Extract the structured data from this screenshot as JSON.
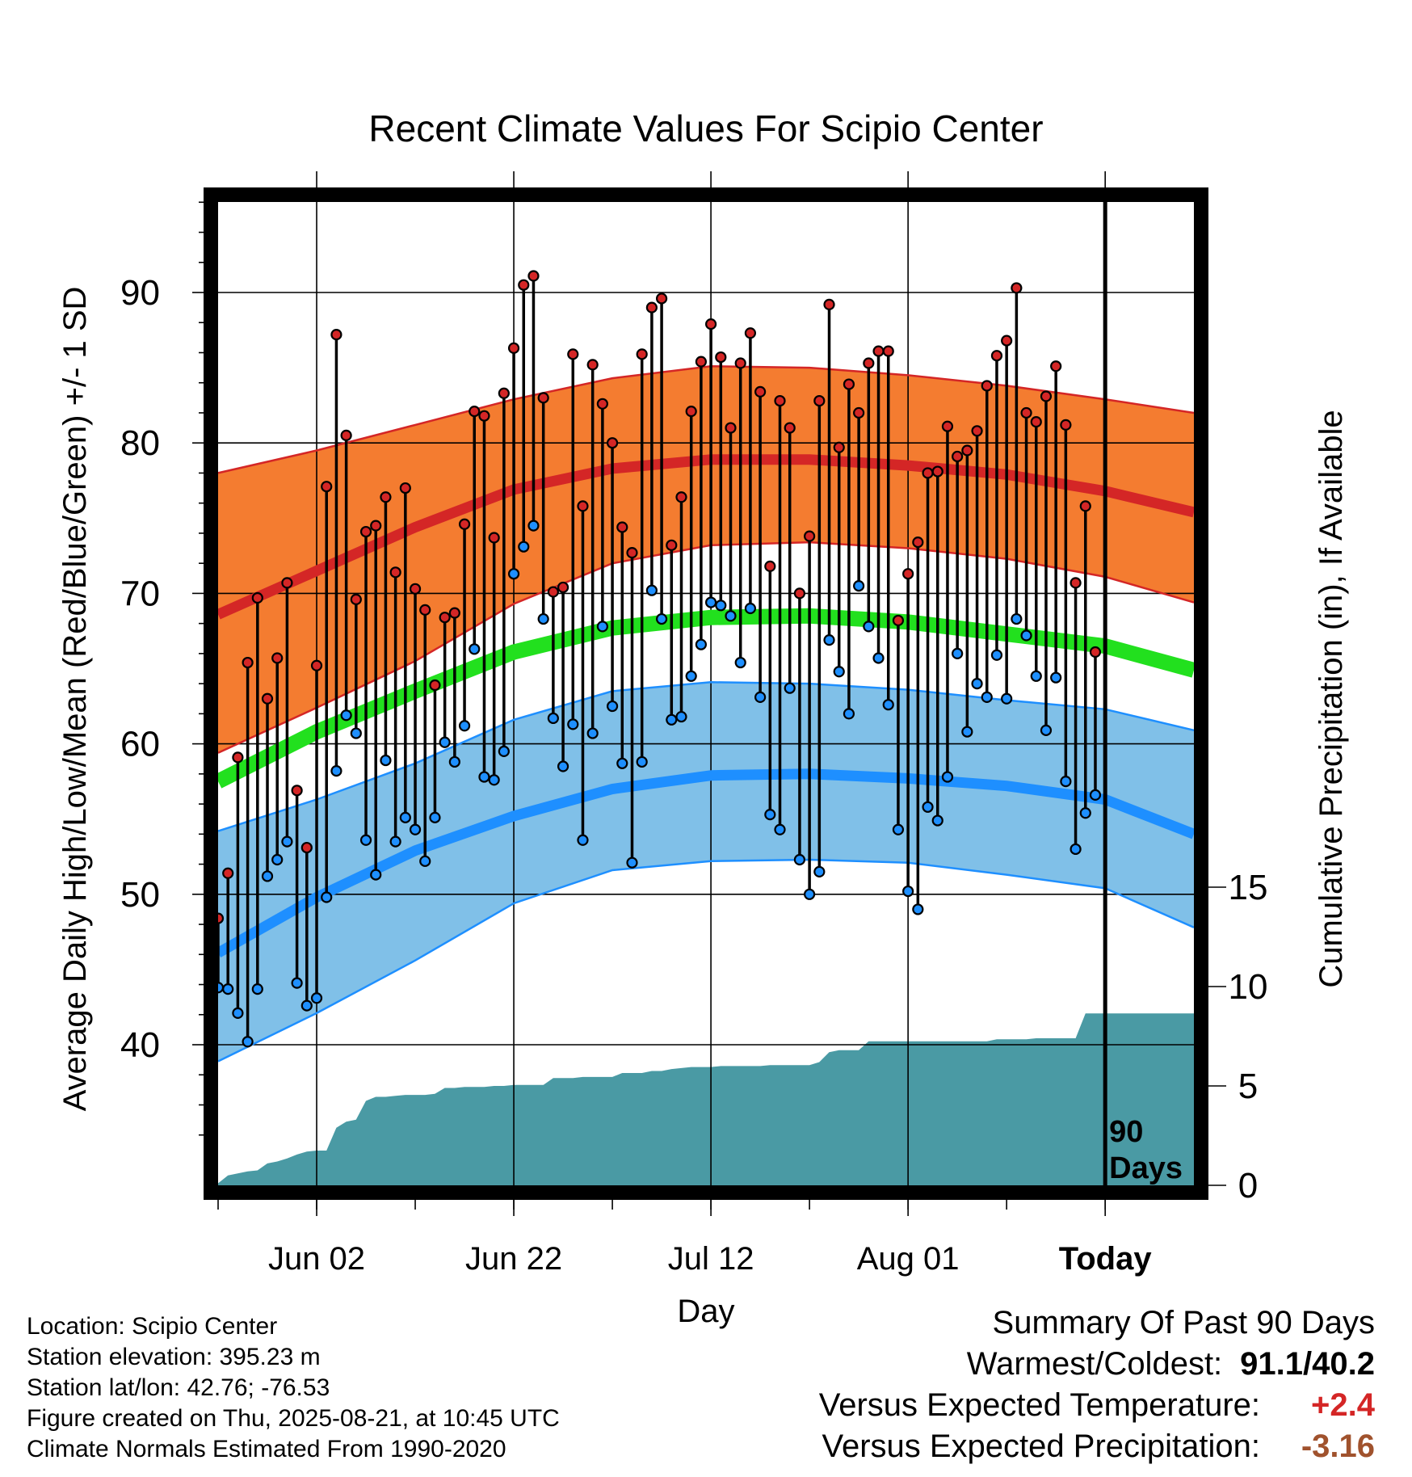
{
  "chart_data": {
    "type": "line",
    "title": "Recent Climate Values For Scipio Center",
    "xlabel": "Day",
    "ylabel": "Average Daily High/Low/Mean (Red/Blue/Green) +/- 1 SD",
    "y2label": "Cumulative Precipitation (in), If Available",
    "xlim": [
      -10,
      89
    ],
    "ylim": [
      30,
      97
    ],
    "y2lim": [
      0,
      20
    ],
    "x_ticks": [
      {
        "x": 0,
        "label": "Jun 02"
      },
      {
        "x": 20,
        "label": "Jun 22"
      },
      {
        "x": 40,
        "label": "Jul 12"
      },
      {
        "x": 60,
        "label": "Aug 01"
      },
      {
        "x": 80,
        "label": "Today"
      }
    ],
    "y_ticks": [
      40,
      50,
      60,
      70,
      80,
      90
    ],
    "y2_ticks": [
      0,
      5,
      10,
      15
    ],
    "today_marker": {
      "x": 80,
      "label_lines": [
        "90",
        "Days"
      ]
    },
    "colors": {
      "high": "#d42626",
      "high_band": "#f47c30",
      "low": "#1e8fff",
      "low_band": "#80c0e8",
      "mean": "#22e01e",
      "precip": "#4a9aa4",
      "line": "#000000"
    },
    "normals": {
      "x": [
        -10,
        0,
        10,
        20,
        30,
        40,
        50,
        60,
        70,
        80,
        89
      ],
      "high_mean": [
        68.6,
        71.5,
        74.4,
        76.9,
        78.3,
        78.9,
        78.9,
        78.5,
        77.9,
        76.8,
        75.4
      ],
      "high_upper": [
        78,
        79.5,
        81.2,
        82.9,
        84.3,
        85.1,
        85,
        84.5,
        83.8,
        82.9,
        82
      ],
      "high_lower": [
        59.4,
        62.4,
        65.5,
        69.3,
        72,
        73.2,
        73.4,
        73,
        72.3,
        71.1,
        69.4
      ],
      "low_mean": [
        46.1,
        49.8,
        52.9,
        55.2,
        57,
        57.9,
        58,
        57.7,
        57.2,
        56.3,
        54
      ],
      "low_upper": [
        54.2,
        56.3,
        58.7,
        61.6,
        63.5,
        64.1,
        64,
        63.6,
        62.9,
        62.3,
        60.9
      ],
      "low_lower": [
        38.9,
        42.1,
        45.6,
        49.4,
        51.6,
        52.2,
        52.3,
        52.1,
        51.3,
        50.4,
        47.8
      ],
      "mean": [
        57.5,
        60.8,
        63.5,
        66.1,
        67.7,
        68.4,
        68.5,
        68.1,
        67.3,
        66.5,
        64.9
      ]
    },
    "daily": {
      "start_x": -10,
      "high": [
        48.4,
        51.4,
        59.1,
        65.4,
        69.7,
        63.0,
        65.7,
        70.7,
        56.9,
        53.1,
        65.2,
        77.1,
        87.2,
        80.5,
        69.6,
        74.1,
        74.5,
        76.4,
        71.4,
        77.0,
        70.3,
        68.9,
        63.9,
        68.4,
        68.7,
        74.6,
        82.1,
        81.8,
        73.7,
        83.3,
        86.3,
        90.5,
        91.1,
        83.0,
        70.1,
        70.4,
        85.9,
        75.8,
        85.2,
        82.6,
        80.0,
        74.4,
        72.7,
        85.9,
        89.0,
        89.6,
        73.2,
        76.4,
        82.1,
        85.4,
        87.9,
        85.7,
        81.0,
        85.3,
        87.3,
        83.4,
        71.8,
        82.8,
        81.0,
        70.0,
        73.8,
        82.8,
        89.2,
        79.7,
        83.9,
        82.0,
        85.3,
        86.1,
        86.1,
        68.2,
        71.3,
        73.4,
        78.0,
        78.1,
        81.1,
        79.1,
        79.5,
        80.8,
        83.8,
        85.8,
        86.8,
        90.3,
        82.0,
        81.4,
        83.1,
        85.1,
        81.2,
        70.7,
        75.8,
        66.1
      ],
      "low": [
        43.8,
        43.7,
        42.1,
        40.2,
        43.7,
        51.2,
        52.3,
        53.5,
        44.1,
        42.6,
        43.1,
        49.8,
        58.2,
        61.9,
        60.7,
        53.6,
        51.3,
        58.9,
        53.5,
        55.1,
        54.3,
        52.2,
        55.1,
        60.1,
        58.8,
        61.2,
        66.3,
        57.8,
        57.6,
        59.5,
        71.3,
        73.1,
        74.5,
        68.3,
        61.7,
        58.5,
        61.3,
        53.6,
        60.7,
        67.8,
        62.5,
        58.7,
        52.1,
        58.8,
        70.2,
        68.3,
        61.6,
        61.8,
        64.5,
        66.6,
        69.4,
        69.2,
        68.5,
        65.4,
        69.0,
        63.1,
        55.3,
        54.3,
        63.7,
        52.3,
        50.0,
        51.5,
        66.9,
        64.8,
        62.0,
        70.5,
        67.8,
        65.7,
        62.6,
        54.3,
        50.2,
        49.0,
        55.8,
        54.9,
        57.8,
        66.0,
        60.8,
        64.0,
        63.1,
        65.9,
        63.0,
        68.3,
        67.2,
        64.5,
        60.9,
        64.4,
        57.5,
        53.0,
        55.4,
        56.6
      ]
    },
    "precip_cumulative": {
      "x": [
        -10,
        -9,
        -8,
        -7,
        -6,
        -5,
        -4,
        -3,
        -2,
        -1,
        0,
        1,
        2,
        3,
        4,
        5,
        6,
        7,
        8,
        9,
        10,
        11,
        12,
        13,
        14,
        15,
        16,
        17,
        18,
        19,
        20,
        21,
        22,
        23,
        24,
        25,
        26,
        27,
        28,
        29,
        30,
        31,
        32,
        33,
        34,
        35,
        36,
        37,
        38,
        39,
        40,
        41,
        42,
        43,
        44,
        45,
        46,
        47,
        48,
        49,
        50,
        51,
        52,
        53,
        54,
        55,
        56,
        57,
        58,
        59,
        60,
        61,
        62,
        63,
        64,
        65,
        66,
        67,
        68,
        69,
        70,
        71,
        72,
        73,
        74,
        75,
        76,
        77,
        78,
        79,
        80,
        89
      ],
      "values": [
        0.1,
        0.5,
        0.6,
        0.7,
        0.75,
        1.1,
        1.2,
        1.35,
        1.55,
        1.7,
        1.75,
        1.75,
        2.9,
        3.2,
        3.3,
        4.25,
        4.45,
        4.45,
        4.5,
        4.55,
        4.55,
        4.55,
        4.6,
        4.9,
        4.9,
        4.95,
        4.95,
        4.95,
        5.0,
        5.0,
        5.05,
        5.05,
        5.05,
        5.05,
        5.4,
        5.4,
        5.4,
        5.45,
        5.45,
        5.45,
        5.45,
        5.65,
        5.65,
        5.65,
        5.75,
        5.75,
        5.85,
        5.9,
        5.95,
        5.95,
        5.95,
        6.0,
        6.0,
        6.0,
        6.0,
        6.0,
        6.05,
        6.05,
        6.05,
        6.05,
        6.05,
        6.2,
        6.7,
        6.8,
        6.8,
        6.8,
        7.25,
        7.25,
        7.25,
        7.25,
        7.25,
        7.25,
        7.25,
        7.25,
        7.25,
        7.25,
        7.25,
        7.25,
        7.25,
        7.35,
        7.35,
        7.35,
        7.35,
        7.4,
        7.4,
        7.4,
        7.4,
        7.4,
        8.65,
        8.65,
        8.65,
        8.65
      ]
    }
  },
  "info": {
    "location": "Location: Scipio Center",
    "elevation": "Station elevation: 395.23 m",
    "latlon": "Station lat/lon: 42.76; -76.53",
    "created": "Figure created on Thu, 2025-08-21, at 10:45 UTC",
    "normals": "Climate Normals Estimated From 1990-2020"
  },
  "summary": {
    "title": "Summary Of Past 90 Days",
    "warm_cold_label": "Warmest/Coldest:",
    "warm_cold_value": "91.1/40.2",
    "temp_label": "Versus Expected Temperature:",
    "temp_value": "+2.4",
    "temp_color": "#d42626",
    "precip_label": "Versus Expected Precipitation:",
    "precip_value": "-3.16",
    "precip_color": "#a0522d"
  }
}
